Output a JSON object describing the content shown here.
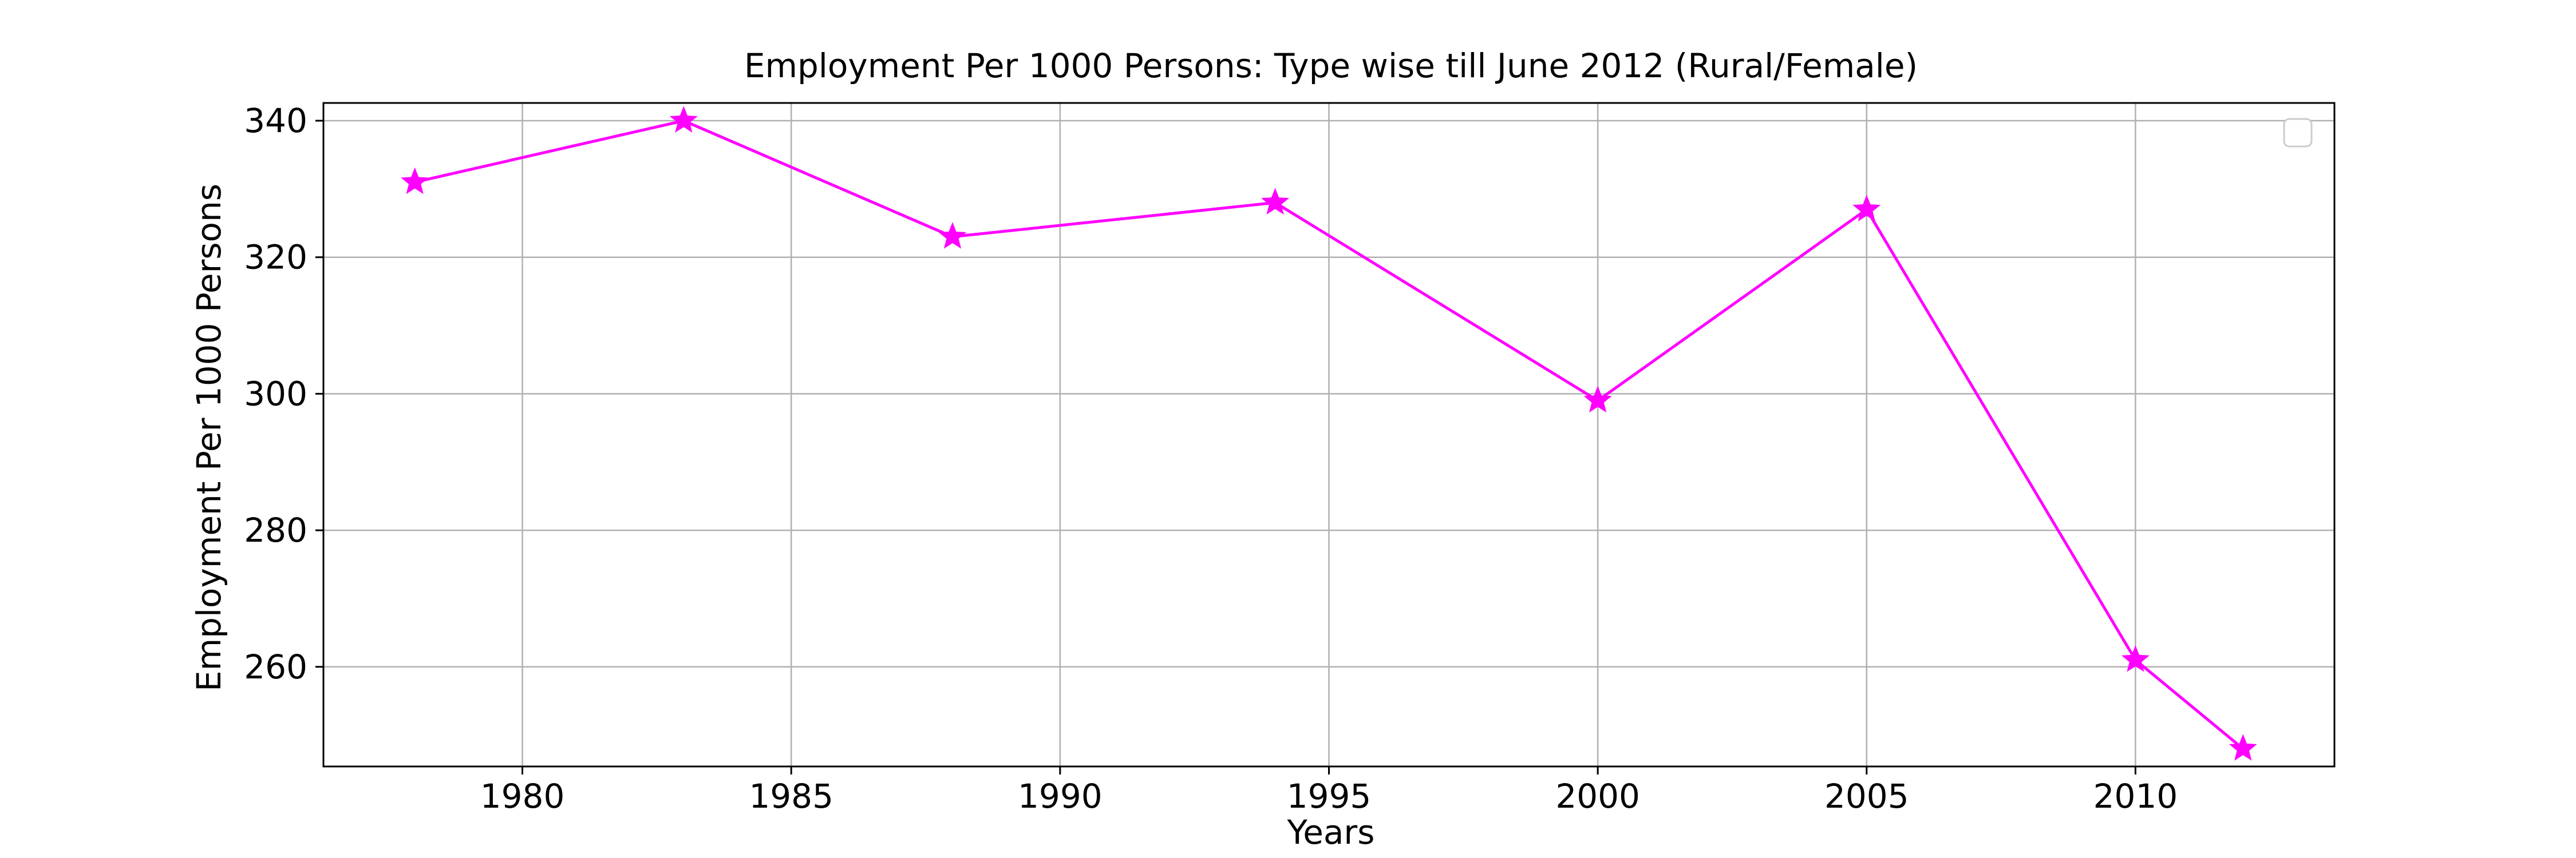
{
  "colors": {
    "background": "#ffffff",
    "series": "#ff00ff",
    "grid": "#b0b0b0",
    "axes": "#000000",
    "legend_frame": "#cccccc"
  },
  "chart_data": {
    "type": "line",
    "title": "Employment Per 1000 Persons: Type wise till June 2012 (Rural/Female)",
    "xlabel": "Years",
    "ylabel": "Employment Per 1000 Persons",
    "xlim": [
      1976.3,
      2013.7
    ],
    "ylim": [
      245.4,
      342.6
    ],
    "x_ticks": [
      1980,
      1985,
      1990,
      1995,
      2000,
      2005,
      2010
    ],
    "y_ticks": [
      260,
      280,
      300,
      320,
      340
    ],
    "grid": true,
    "legend": {
      "placement": "top-right",
      "entries": []
    },
    "series": [
      {
        "marker": "star",
        "color": "#ff00ff",
        "x": [
          1978,
          1983,
          1988,
          1994,
          2000,
          2005,
          2010,
          2012
        ],
        "y": [
          331,
          340,
          323,
          328,
          299,
          327,
          261,
          248
        ]
      }
    ]
  }
}
